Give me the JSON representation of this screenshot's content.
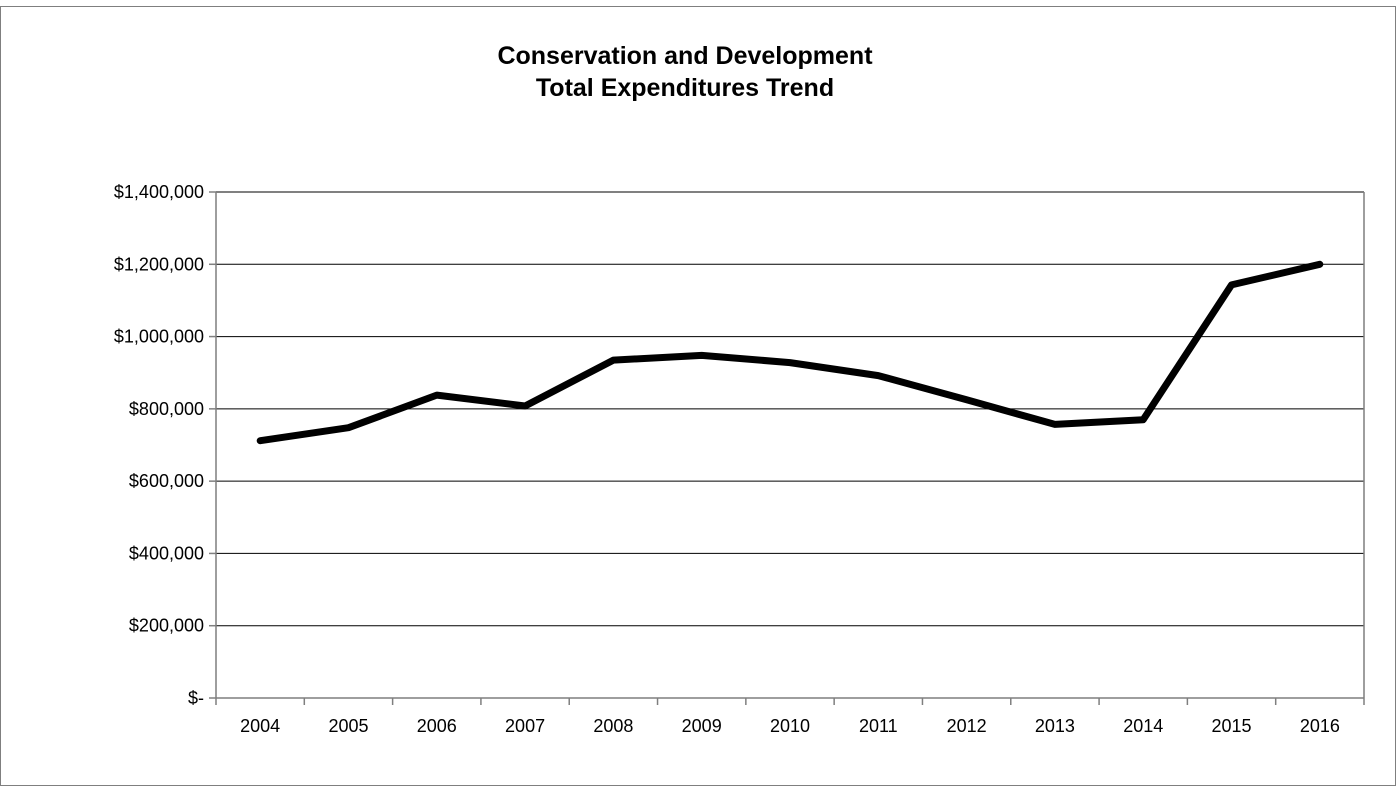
{
  "chart_data": {
    "type": "line",
    "title": [
      "Conservation and Development",
      "Total Expenditures Trend"
    ],
    "xlabel": "",
    "ylabel": "",
    "categories": [
      "2004",
      "2005",
      "2006",
      "2007",
      "2008",
      "2009",
      "2010",
      "2011",
      "2012",
      "2013",
      "2014",
      "2015",
      "2016"
    ],
    "series": [
      {
        "values": [
          712000,
          748000,
          838000,
          808000,
          935000,
          948000,
          928000,
          892000,
          825000,
          757000,
          770000,
          1143000,
          1200000
        ]
      }
    ],
    "ylim": [
      0,
      1400000
    ],
    "yticks": [
      0,
      200000,
      400000,
      600000,
      800000,
      1000000,
      1200000,
      1400000
    ],
    "ytick_labels": [
      "$-",
      "$200,000",
      "$400,000",
      "$600,000",
      "$800,000",
      "$1,000,000",
      "$1,200,000",
      "$1,400,000"
    ],
    "grid": true,
    "legend": "none",
    "line_color": "#000000",
    "grid_color": "#000000",
    "axis_color": "#7f7f7f"
  }
}
